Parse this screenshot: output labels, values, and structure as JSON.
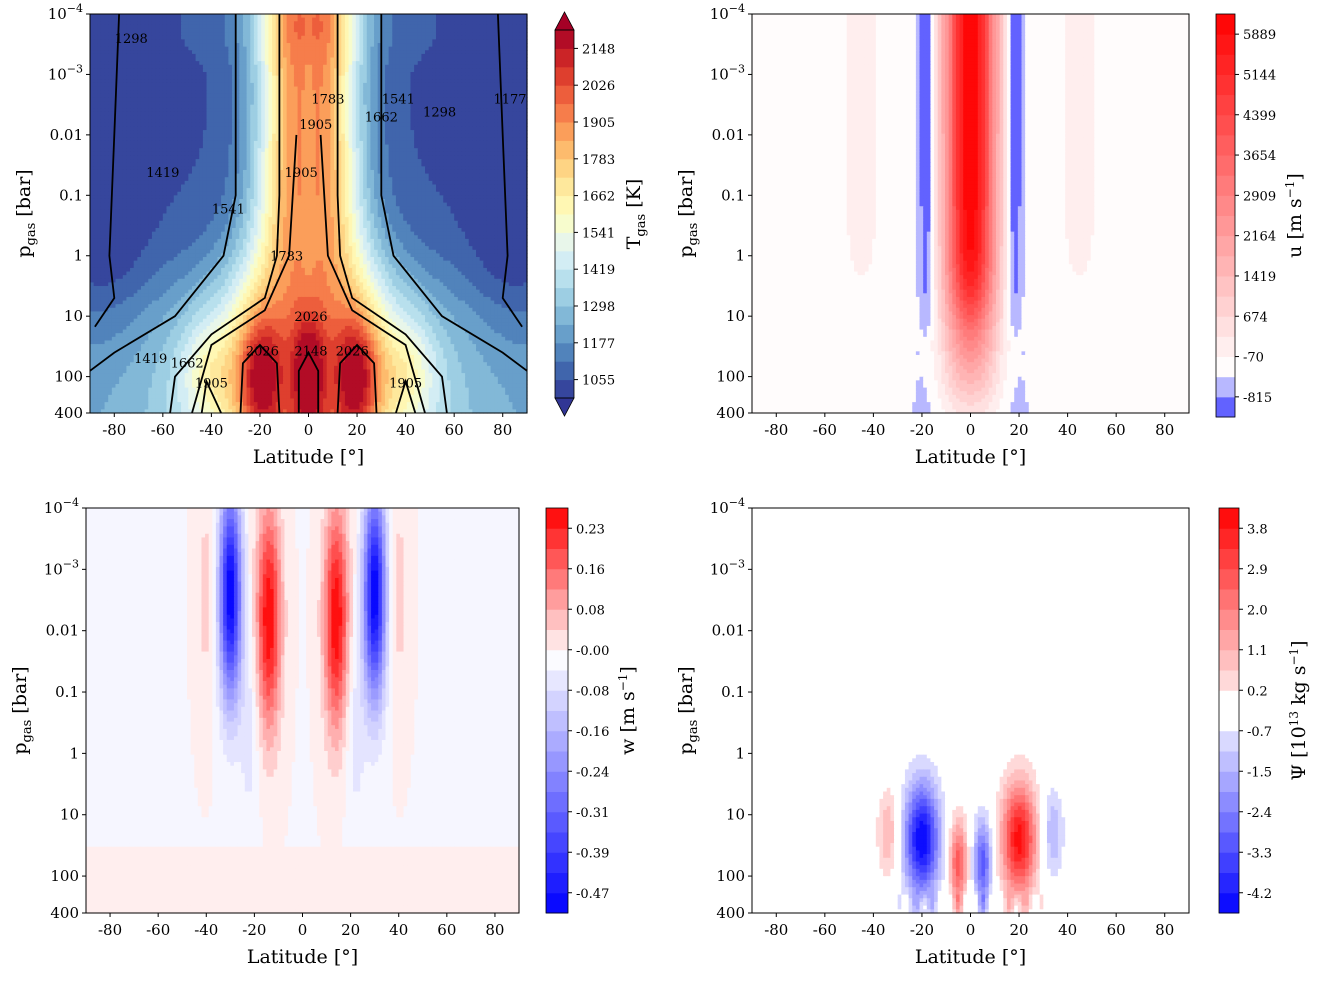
{
  "chart_data": [
    {
      "type": "heatmap",
      "panel": "top-left",
      "xlabel": "Latitude [°]",
      "ylabel": "p_gas [bar]",
      "x_ticks": [
        "-80",
        "-60",
        "-40",
        "-20",
        "0",
        "20",
        "40",
        "60",
        "80"
      ],
      "x_tick_values": [
        -80,
        -60,
        -40,
        -20,
        0,
        20,
        40,
        60,
        80
      ],
      "xlim": [
        -90,
        90
      ],
      "y_ticks": [
        "10^-4",
        "10^-3",
        "0.01",
        "0.1",
        "1",
        "10",
        "100",
        "400"
      ],
      "y_tick_values": [
        0.0001,
        0.001,
        0.01,
        0.1,
        1,
        10,
        100,
        400
      ],
      "ylim": [
        400,
        0.0001
      ],
      "yscale": "log",
      "colorbar_label": "T_gas [K]",
      "colorbar_ticks": [
        "1055",
        "1177",
        "1298",
        "1419",
        "1541",
        "1662",
        "1783",
        "1905",
        "2026",
        "2148"
      ],
      "colorbar_range": [
        1055,
        2148
      ],
      "colorbar_extend": "both",
      "colormap": "RdYlBu_r",
      "contour_labels": [
        "1298",
        "1783",
        "1541",
        "1177",
        "1905",
        "1662",
        "1419",
        "1298",
        "1905",
        "1541",
        "1783",
        "2026",
        "2026",
        "2148",
        "2026",
        "1419",
        "1662",
        "1905",
        "1905"
      ],
      "equator_max_K": 2148,
      "polar_min_K": 1055
    },
    {
      "type": "heatmap",
      "panel": "top-right",
      "xlabel": "Latitude [°]",
      "ylabel": "p_gas [bar]",
      "x_ticks": [
        "-80",
        "-60",
        "-40",
        "-20",
        "0",
        "20",
        "40",
        "60",
        "80"
      ],
      "x_tick_values": [
        -80,
        -60,
        -40,
        -20,
        0,
        20,
        40,
        60,
        80
      ],
      "xlim": [
        -90,
        90
      ],
      "y_ticks": [
        "10^-4",
        "10^-3",
        "0.01",
        "0.1",
        "1",
        "10",
        "100",
        "400"
      ],
      "y_tick_values": [
        0.0001,
        0.001,
        0.01,
        0.1,
        1,
        10,
        100,
        400
      ],
      "ylim": [
        400,
        0.0001
      ],
      "yscale": "log",
      "colorbar_label": "u [m s^-1]",
      "colorbar_ticks": [
        "-815",
        "-70",
        "674",
        "1419",
        "2164",
        "2909",
        "3654",
        "4399",
        "5144",
        "5889"
      ],
      "colorbar_range": [
        -815,
        6200
      ],
      "colormap": "bwr",
      "equatorial_jet_max": 6200,
      "retrograde_jet_latitudes": [
        -18,
        18
      ]
    },
    {
      "type": "heatmap",
      "panel": "bottom-left",
      "xlabel": "Latitude [°]",
      "ylabel": "p_gas [bar]",
      "x_ticks": [
        "-80",
        "-60",
        "-40",
        "-20",
        "0",
        "20",
        "40",
        "60",
        "80"
      ],
      "x_tick_values": [
        -80,
        -60,
        -40,
        -20,
        0,
        20,
        40,
        60,
        80
      ],
      "xlim": [
        -90,
        90
      ],
      "y_ticks": [
        "10^-4",
        "10^-3",
        "0.01",
        "0.1",
        "1",
        "10",
        "100",
        "400"
      ],
      "y_tick_values": [
        0.0001,
        0.001,
        0.01,
        0.1,
        1,
        10,
        100,
        400
      ],
      "ylim": [
        400,
        0.0001
      ],
      "yscale": "log",
      "colorbar_label": "w [m s^-1]",
      "colorbar_ticks": [
        "-0.47",
        "-0.39",
        "-0.31",
        "-0.24",
        "-0.16",
        "-0.08",
        "-0.00",
        "0.08",
        "0.16",
        "0.23"
      ],
      "colorbar_range": [
        -0.47,
        0.27
      ],
      "colormap": "bwr",
      "updraft_latitudes": [
        -14,
        14
      ],
      "downdraft_latitudes": [
        -30,
        30
      ]
    },
    {
      "type": "heatmap",
      "panel": "bottom-right",
      "xlabel": "Latitude [°]",
      "ylabel": "p_gas [bar]",
      "x_ticks": [
        "-80",
        "-60",
        "-40",
        "-20",
        "0",
        "20",
        "40",
        "60",
        "80"
      ],
      "x_tick_values": [
        -80,
        -60,
        -40,
        -20,
        0,
        20,
        40,
        60,
        80
      ],
      "xlim": [
        -90,
        90
      ],
      "y_ticks": [
        "10^-4",
        "10^-3",
        "0.01",
        "0.1",
        "1",
        "10",
        "100",
        "400"
      ],
      "y_tick_values": [
        0.0001,
        0.001,
        0.01,
        0.1,
        1,
        10,
        100,
        400
      ],
      "ylim": [
        400,
        0.0001
      ],
      "yscale": "log",
      "colorbar_label": "Ψ [10^13 kg s^-1]",
      "colorbar_ticks": [
        "-4.2",
        "-3.3",
        "-2.4",
        "-1.5",
        "-0.7",
        "0.2",
        "1.1",
        "2.0",
        "2.9",
        "3.8"
      ],
      "colorbar_range": [
        -4.2,
        4.2
      ],
      "colormap": "bwr",
      "cells": [
        {
          "lat": -20,
          "sign": "negative"
        },
        {
          "lat": -5,
          "sign": "positive"
        },
        {
          "lat": 5,
          "sign": "negative"
        },
        {
          "lat": 20,
          "sign": "positive"
        }
      ]
    }
  ]
}
